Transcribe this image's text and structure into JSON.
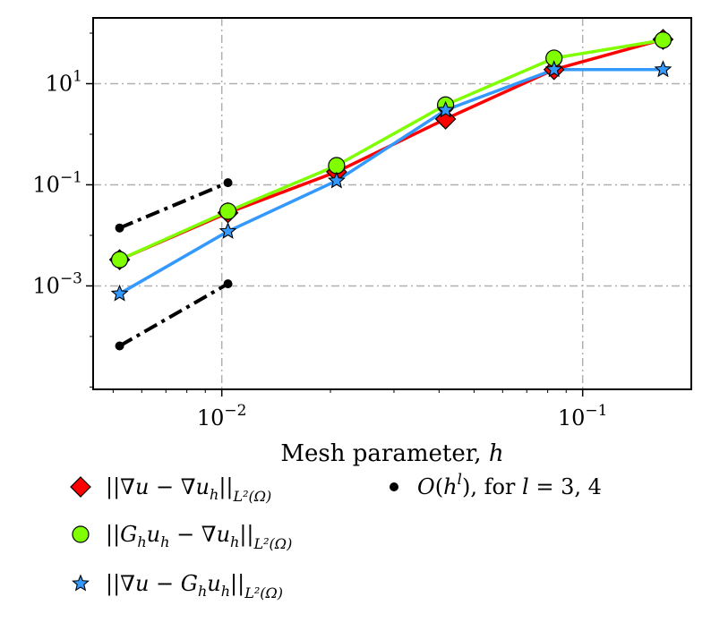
{
  "chart_data": {
    "type": "line",
    "xscale": "log",
    "yscale": "log",
    "xlabel": "Mesh parameter, h",
    "ylabel": "",
    "xlim": [
      0.0044,
      0.2
    ],
    "ylim": [
      9e-06,
      200
    ],
    "grid": true,
    "legend_position": "below",
    "x_ticks": [
      {
        "value": 0.01,
        "base": "10",
        "exp": "−2"
      },
      {
        "value": 0.1,
        "base": "10",
        "exp": "−1"
      }
    ],
    "y_ticks": [
      {
        "value": 0.001,
        "base": "10",
        "exp": "−3"
      },
      {
        "value": 0.1,
        "base": "10",
        "exp": "−1"
      },
      {
        "value": 10,
        "base": "10",
        "exp": "1"
      }
    ],
    "series": [
      {
        "key": "grad_error",
        "name": "||∇u − ∇u_h||_{L²(Ω)}",
        "legend_main": "||∇u − ∇u",
        "legend_sub": "h",
        "legend_tail": "||",
        "legend_norm": "L²(Ω)",
        "color": "#ff0000",
        "marker": "diamond",
        "marker_fill": "#ff0000",
        "x": [
          0.00521,
          0.0104,
          0.0208,
          0.0417,
          0.0833,
          0.167
        ],
        "y": [
          0.0033,
          0.028,
          0.18,
          2.0,
          19,
          75
        ]
      },
      {
        "key": "recovered_vs_discrete",
        "name": "||G_h u_h − ∇u_h||_{L²(Ω)}",
        "legend_main": "||G",
        "legend_sub": "h",
        "legend_mid": "u",
        "legend_sub2": "h",
        "legend_mid2": " − ∇u",
        "legend_sub3": "h",
        "legend_tail": "||",
        "legend_norm": "L²(Ω)",
        "color": "#80ff00",
        "marker": "circle",
        "marker_fill": "#80ff00",
        "x": [
          0.00521,
          0.0104,
          0.0208,
          0.0417,
          0.0833,
          0.167
        ],
        "y": [
          0.0033,
          0.03,
          0.24,
          3.8,
          32,
          73
        ]
      },
      {
        "key": "recovered_error",
        "name": "||∇u − G_h u_h||_{L²(Ω)}",
        "legend_main": "||∇u − G",
        "legend_sub": "h",
        "legend_mid": "u",
        "legend_sub2": "h",
        "legend_tail": "||",
        "legend_norm": "L²(Ω)",
        "color": "#3399ff",
        "marker": "star",
        "marker_fill": "#3399ff",
        "x": [
          0.00521,
          0.0104,
          0.0208,
          0.0417,
          0.0833,
          0.167
        ],
        "y": [
          0.0007,
          0.012,
          0.12,
          3.0,
          19,
          19
        ]
      }
    ],
    "reference_lines": [
      {
        "name": "O(h^3)",
        "x": [
          0.00521,
          0.0104
        ],
        "y": [
          0.014,
          0.11
        ]
      },
      {
        "name": "O(h^4)",
        "x": [
          0.00521,
          0.0104
        ],
        "y": [
          6.5e-05,
          0.0011
        ]
      }
    ],
    "reference_legend": "O(h^l), for l = 3, 4",
    "reference_legend_parts": {
      "pre": "O(h",
      "sup": "l",
      "post": "), for ",
      "l": "l",
      "eq": " = 3, 4"
    },
    "colors": {
      "reference": "#000000",
      "grid": "#b0b0b0",
      "axis": "#000000"
    }
  }
}
